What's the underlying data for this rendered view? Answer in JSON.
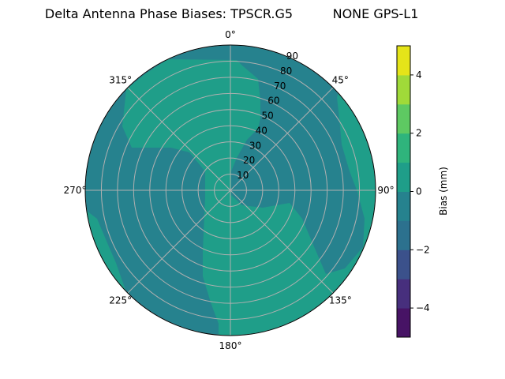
{
  "chart_data": {
    "type": "contour",
    "projection": "polar",
    "title": "Delta Antenna Phase Biases: TPSCR.G5",
    "subtitle": "NONE GPS-L1",
    "theta_direction": "clockwise",
    "theta_zero": "top",
    "theta_ticks": [
      "0°",
      "45°",
      "90°",
      "135°",
      "180°",
      "225°",
      "270°",
      "315°"
    ],
    "r_ticks": [
      "10",
      "20",
      "30",
      "40",
      "50",
      "60",
      "70",
      "80",
      "90"
    ],
    "r_range": [
      0,
      90
    ],
    "grid": true,
    "levels": [
      -5,
      -4,
      -3,
      -2,
      -1,
      0,
      1,
      2,
      3,
      4,
      5
    ],
    "colormap": "viridis",
    "level_colors": [
      "#471365",
      "#472f7d",
      "#3b518b",
      "#2c718e",
      "#26828e",
      "#1f9e89",
      "#2fb47c",
      "#5ec962",
      "#a0da39",
      "#e5e419"
    ],
    "present_levels": [
      {
        "range": [
          -1,
          0
        ],
        "color": "#26828e",
        "where": "background / north-east, west and south-west sectors"
      },
      {
        "range": [
          0,
          1
        ],
        "color": "#1f9e89",
        "where": "north-west lobe, centre to south, east rim strip"
      }
    ],
    "colorbar": {
      "label": "Bias (mm)",
      "ticks": [
        "−4",
        "−2",
        "0",
        "2",
        "4"
      ],
      "tick_values": [
        -4,
        -2,
        0,
        2,
        4
      ],
      "range": [
        -5,
        5
      ]
    }
  }
}
